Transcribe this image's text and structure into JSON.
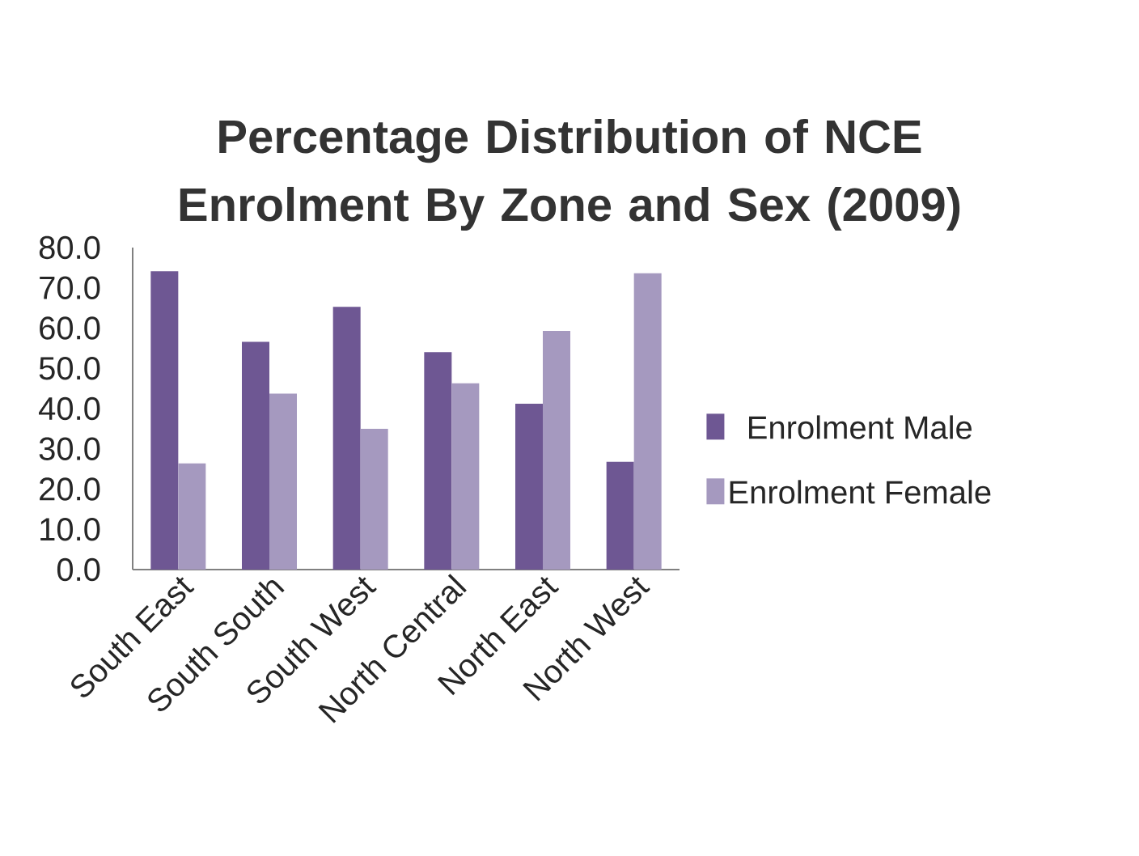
{
  "chart_data": {
    "type": "bar",
    "title": "Percentage Distribution of NCE Enrolment By Zone and Sex (2009)",
    "categories": [
      "South East",
      "South South",
      "South West",
      "North Central",
      "North East",
      "North West"
    ],
    "series": [
      {
        "name": "Enrolment Male",
        "color": "#6e5793",
        "values": [
          74.1,
          56.6,
          65.3,
          54.0,
          41.2,
          26.8
        ]
      },
      {
        "name": "Enrolment Female",
        "color": "#a599bf",
        "values": [
          26.4,
          43.7,
          35.0,
          46.3,
          59.3,
          73.6
        ]
      }
    ],
    "ylim": [
      0,
      80
    ],
    "yticks": [
      {
        "value": 0,
        "label": "0.0"
      },
      {
        "value": 10,
        "label": "10.0"
      },
      {
        "value": 20,
        "label": "20.0"
      },
      {
        "value": 30,
        "label": "30.0"
      },
      {
        "value": 40,
        "label": "40.0"
      },
      {
        "value": 50,
        "label": "50.0"
      },
      {
        "value": 60,
        "label": "60.0"
      },
      {
        "value": 70,
        "label": "70.0"
      },
      {
        "value": 80,
        "label": "80.0"
      }
    ],
    "legend": "right",
    "grid": false
  }
}
